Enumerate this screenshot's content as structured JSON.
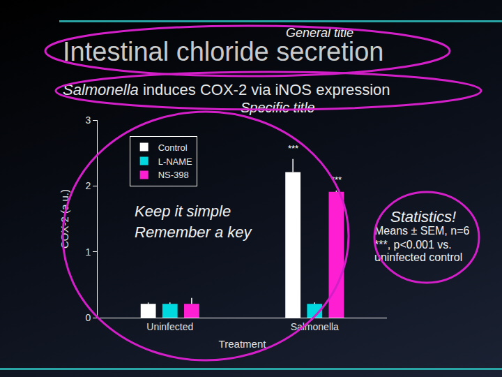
{
  "chart_data": {
    "type": "bar",
    "title": "Intestinal chloride secretion",
    "subtitle": "Salmonella induces COX-2 via iNOS expression",
    "x_label": "Treatment",
    "y_label": "COX-2 (a.u.)",
    "categories": [
      "Uninfected",
      "Salmonella"
    ],
    "series": [
      {
        "name": "Control",
        "color": "#ffffff",
        "values": [
          0.21,
          2.21
        ],
        "errors": [
          0.02,
          0.2
        ]
      },
      {
        "name": "L-NAME",
        "color": "#00d8e0",
        "values": [
          0.21,
          0.21
        ],
        "errors": [
          0.02,
          0.02
        ]
      },
      {
        "name": "NS-398",
        "color": "#ff1fd2",
        "values": [
          0.21,
          1.91
        ],
        "errors": [
          0.09,
          0.02
        ]
      }
    ],
    "ylim": [
      0,
      3
    ],
    "yticks": [
      0,
      1,
      2,
      3
    ],
    "grid": false,
    "legend": "upper left",
    "significance": [
      {
        "category": 1,
        "series": "Control",
        "text": "***"
      },
      {
        "category": 1,
        "series": "NS-398",
        "text": "***"
      }
    ],
    "annotations": [
      "General title",
      "Specific title",
      "Keep it simple",
      "Remember a key",
      "Statistics!"
    ],
    "footnote": [
      "Means ± SEM, n=6",
      "***, p<0.001 vs. uninfected control"
    ]
  }
}
